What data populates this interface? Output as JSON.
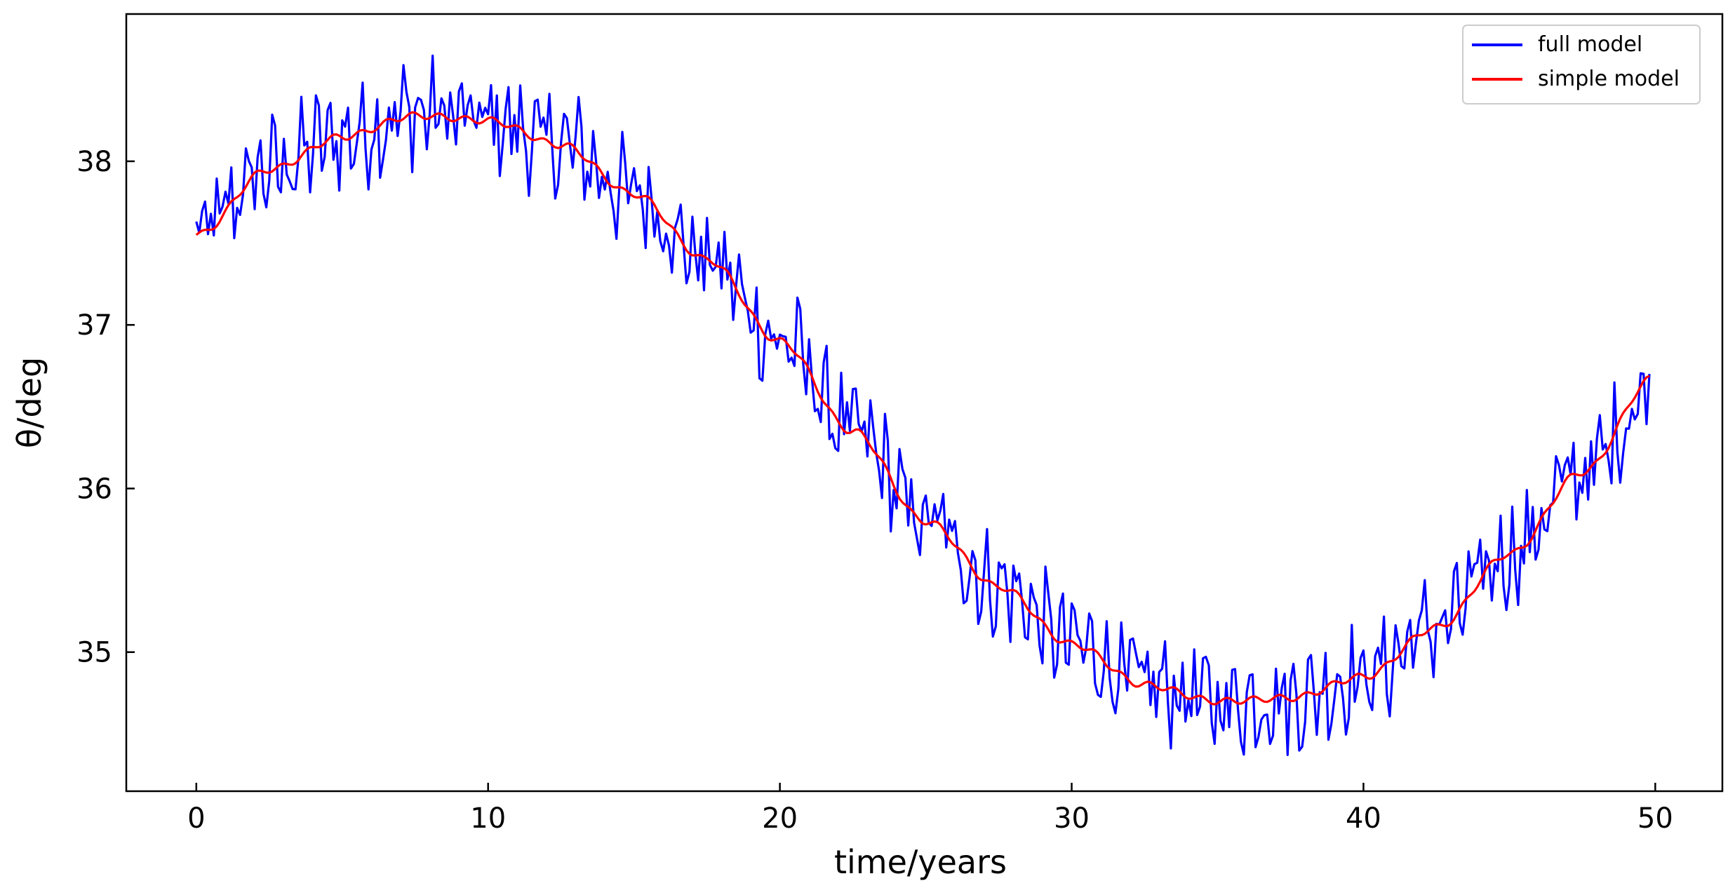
{
  "chart_data": {
    "type": "line",
    "title": "",
    "xlabel": "time/years",
    "ylabel": "θ/deg",
    "xlim": [
      -2.4,
      52.3
    ],
    "ylim": [
      34.15,
      38.9
    ],
    "x_ticks": [
      0,
      10,
      20,
      30,
      40,
      50
    ],
    "y_ticks": [
      35,
      36,
      37,
      38
    ],
    "x_tick_labels": [
      "0",
      "10",
      "20",
      "30",
      "40",
      "50"
    ],
    "y_tick_labels": [
      "35",
      "36",
      "37",
      "38"
    ],
    "grid": false,
    "legend_position": "top-right",
    "x": [
      0,
      2.5,
      5,
      7.5,
      10,
      12.5,
      15,
      17.5,
      20,
      22.5,
      25,
      27.5,
      30,
      32.5,
      35,
      37.5,
      40,
      42.5,
      45,
      47.5,
      50
    ],
    "series": [
      {
        "name": "full model",
        "color": "#0000ff",
        "x_step": 0.1,
        "x_start": 0,
        "x_end": 49.8,
        "noise_amplitude": 0.35,
        "values": [
          37.55,
          37.95,
          38.15,
          38.3,
          38.25,
          38.1,
          37.8,
          37.4,
          36.9,
          36.35,
          35.8,
          35.4,
          35.05,
          34.8,
          34.7,
          34.72,
          34.85,
          35.15,
          35.6,
          36.1,
          36.6
        ]
      },
      {
        "name": "simple model",
        "color": "#ff0000",
        "values": [
          37.55,
          37.95,
          38.15,
          38.28,
          38.25,
          38.1,
          37.8,
          37.4,
          36.9,
          36.35,
          35.8,
          35.4,
          35.05,
          34.8,
          34.7,
          34.72,
          34.85,
          35.15,
          35.6,
          36.1,
          36.68
        ]
      }
    ]
  }
}
